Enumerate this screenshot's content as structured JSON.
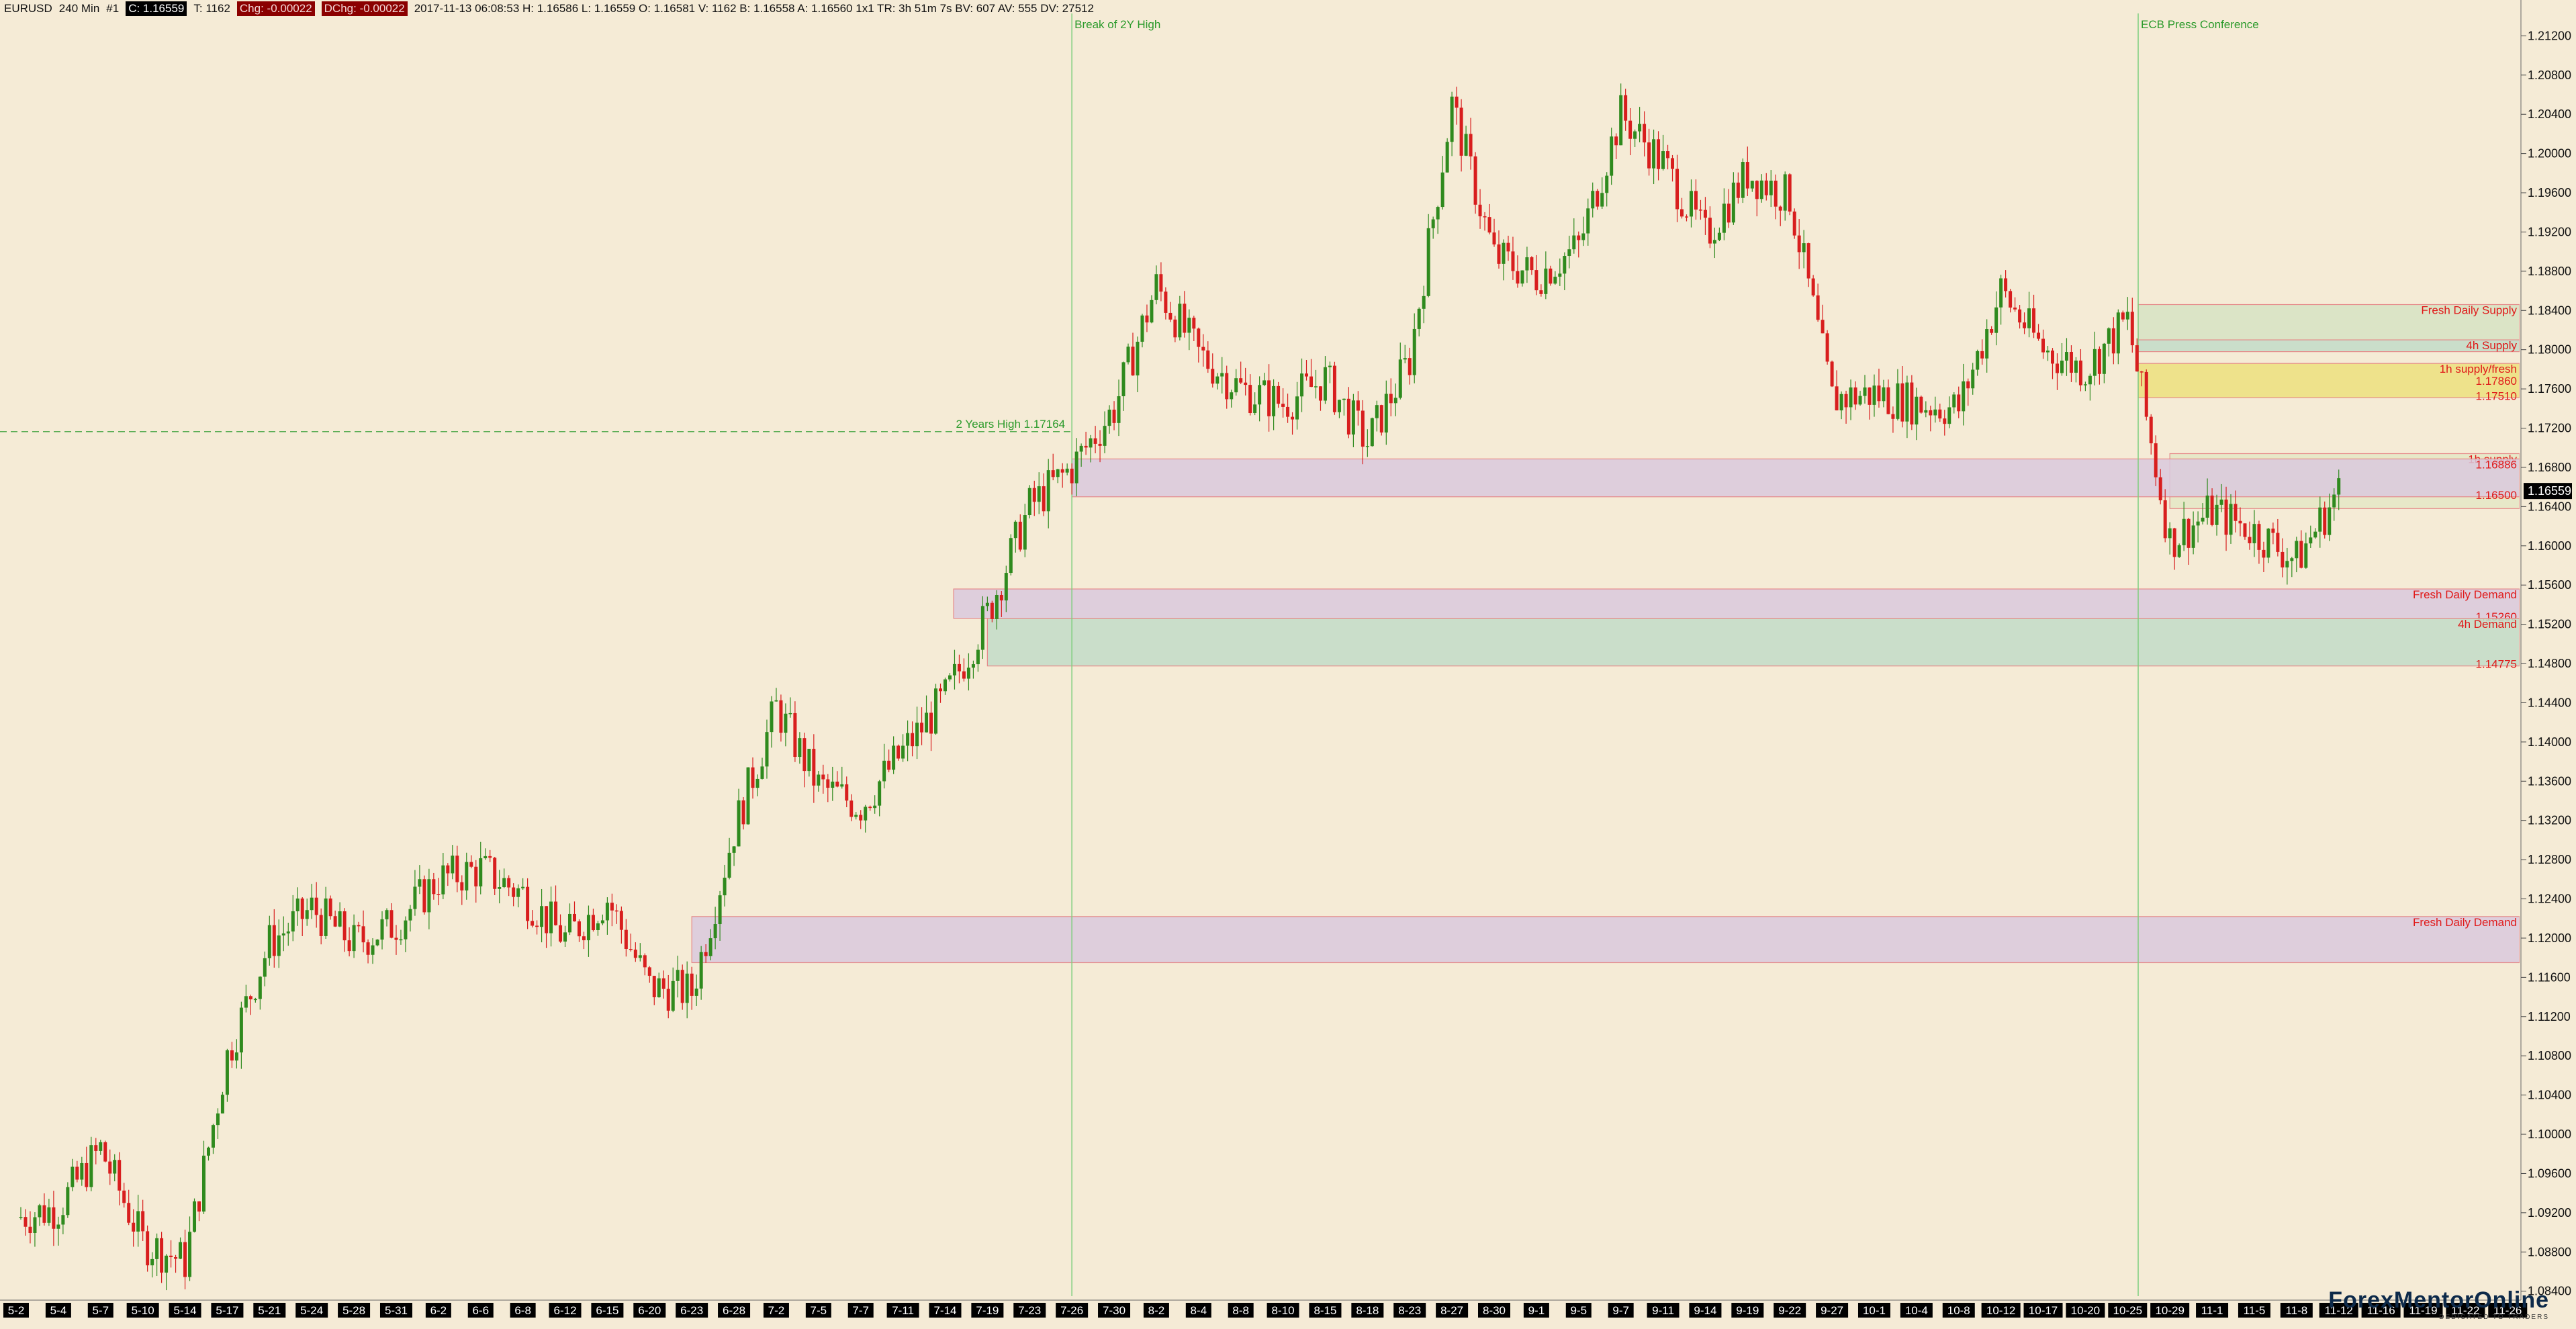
{
  "status": {
    "symbol": "EURUSD",
    "interval": "240 Min",
    "index": "#1",
    "close": "C: 1.16559",
    "ticks": "T: 1162",
    "chg": "Chg: -0.00022",
    "dchg": "DChg: -0.00022",
    "details": "2017-11-13 06:08:53 H: 1.16586 L: 1.16559 O: 1.16581 V: 1162 B: 1.16558 A: 1.16560 1x1 TR: 3h 51m 7s BV: 607 AV: 555 DV: 27512"
  },
  "watermark": {
    "brand": "ForexMentorOnline",
    "tagline": "DEDICATED TO TRADERS"
  },
  "chart_data": {
    "type": "candlestick",
    "symbol": "EURUSD",
    "timeframe": "240 Min",
    "ylim": [
      1.0835,
      1.2136
    ],
    "y_ticks": [
      "1.21200",
      "1.20800",
      "1.20400",
      "1.20000",
      "1.19600",
      "1.19200",
      "1.18800",
      "1.18400",
      "1.18000",
      "1.17600",
      "1.17200",
      "1.16800",
      "1.16400",
      "1.16000",
      "1.15600",
      "1.15200",
      "1.14800",
      "1.14400",
      "1.14000",
      "1.13600",
      "1.13200",
      "1.12800",
      "1.12400",
      "1.12000",
      "1.11600",
      "1.11200",
      "1.10800",
      "1.10400",
      "1.10000",
      "1.09600",
      "1.09200",
      "1.08800",
      "1.08400"
    ],
    "x_ticks": [
      "5-2",
      "5-4",
      "5-7",
      "5-10",
      "5-14",
      "5-17",
      "5-21",
      "5-24",
      "5-28",
      "5-31",
      "6-2",
      "6-6",
      "6-8",
      "6-12",
      "6-15",
      "6-20",
      "6-23",
      "6-28",
      "7-2",
      "7-5",
      "7-7",
      "7-11",
      "7-14",
      "7-19",
      "7-23",
      "7-26",
      "7-30",
      "8-2",
      "8-4",
      "8-8",
      "8-10",
      "8-15",
      "8-18",
      "8-23",
      "8-27",
      "8-30",
      "9-1",
      "9-5",
      "9-7",
      "9-11",
      "9-14",
      "9-19",
      "9-22",
      "9-27",
      "10-1",
      "10-4",
      "10-8",
      "10-12",
      "10-17",
      "10-20",
      "10-25",
      "10-29",
      "11-1",
      "11-5",
      "11-8",
      "11-12",
      "11-16",
      "11-19",
      "11-22",
      "11-26"
    ],
    "price_path": [
      [
        "5-2",
        1.0915
      ],
      [
        "5-4",
        1.0925
      ],
      [
        "5-7",
        1.0985
      ],
      [
        "5-10",
        1.089
      ],
      [
        "5-14",
        1.087
      ],
      [
        "5-17",
        1.108
      ],
      [
        "5-21",
        1.1195
      ],
      [
        "5-24",
        1.123
      ],
      [
        "5-28",
        1.1195
      ],
      [
        "5-31",
        1.1215
      ],
      [
        "6-2",
        1.126
      ],
      [
        "6-6",
        1.127
      ],
      [
        "6-8",
        1.1245
      ],
      [
        "6-12",
        1.12
      ],
      [
        "6-15",
        1.124
      ],
      [
        "6-20",
        1.115
      ],
      [
        "6-23",
        1.1145
      ],
      [
        "6-28",
        1.131
      ],
      [
        "7-2",
        1.1435
      ],
      [
        "7-5",
        1.1355
      ],
      [
        "7-7",
        1.1335
      ],
      [
        "7-11",
        1.139
      ],
      [
        "7-14",
        1.1445
      ],
      [
        "7-19",
        1.153
      ],
      [
        "7-23",
        1.164
      ],
      [
        "7-26",
        1.168
      ],
      [
        "7-30",
        1.174
      ],
      [
        "8-2",
        1.1865
      ],
      [
        "8-4",
        1.1795
      ],
      [
        "8-8",
        1.176
      ],
      [
        "8-10",
        1.1745
      ],
      [
        "8-15",
        1.177
      ],
      [
        "8-18",
        1.1705
      ],
      [
        "8-23",
        1.179
      ],
      [
        "8-27",
        1.205
      ],
      [
        "8-30",
        1.1895
      ],
      [
        "9-1",
        1.1875
      ],
      [
        "9-5",
        1.1905
      ],
      [
        "9-7",
        1.204
      ],
      [
        "9-11",
        1.199
      ],
      [
        "9-14",
        1.1915
      ],
      [
        "9-19",
        1.198
      ],
      [
        "9-22",
        1.1955
      ],
      [
        "9-27",
        1.175
      ],
      [
        "10-1",
        1.1755
      ],
      [
        "10-4",
        1.1745
      ],
      [
        "10-8",
        1.174
      ],
      [
        "10-12",
        1.186
      ],
      [
        "10-17",
        1.18
      ],
      [
        "10-20",
        1.178
      ],
      [
        "10-25",
        1.183
      ],
      [
        "10-29",
        1.1605
      ],
      [
        "11-1",
        1.1635
      ],
      [
        "11-5",
        1.1615
      ],
      [
        "11-8",
        1.1585
      ],
      [
        "11-12",
        1.16559
      ]
    ],
    "last_price": "1.16559",
    "horizontal_lines": [
      {
        "label": "2 Years High  1.17164",
        "price": 1.17164,
        "style": "dashed"
      }
    ],
    "vertical_lines": [
      {
        "label": "Break of 2Y High",
        "date": "7-26"
      },
      {
        "label": "ECB Press Conference",
        "date": "10-26"
      }
    ],
    "zones": [
      {
        "label": "Fresh Daily Supply",
        "from": "10-26",
        "price_top": 1.1846,
        "price_bottom": 1.181
      },
      {
        "label": "4h Supply",
        "from": "10-26",
        "price_top": 1.181,
        "price_bottom": 1.1798
      },
      {
        "label": "1h supply/fresh",
        "from": "10-26",
        "price_top": 1.1786,
        "price_bottom": 1.1751,
        "upper_label": "1.17860",
        "lower_label": "1.17510"
      },
      {
        "label": "1h supply",
        "from": "10-29",
        "price_top": 1.1694,
        "price_bottom": 1.1638
      },
      {
        "label": "",
        "from": "7-26",
        "price_top": 1.16886,
        "price_bottom": 1.165,
        "upper_label": "1.16886",
        "lower_label": "1.16500"
      },
      {
        "label": "Fresh Daily Demand",
        "from": "7-15",
        "price_top": 1.1556,
        "price_bottom": 1.1526,
        "lower_label": "1.15260"
      },
      {
        "label": "4h Demand",
        "from": "7-19",
        "price_top": 1.1526,
        "price_bottom": 1.14775,
        "lower_label": "1.14775"
      },
      {
        "label": "Fresh Daily Demand",
        "from": "6-23",
        "price_top": 1.1222,
        "price_bottom": 1.1175
      }
    ],
    "last_candle_date": "11-13",
    "colors": {
      "background": "#f5ebd6",
      "up_candle": "#2f8a1e",
      "down_candle": "#d81e1e",
      "zone_purple": "#d3c6de",
      "zone_green": "#e3e8c4",
      "zone_teal": "#bfdcc4",
      "zone_yellow": "#e9e28a",
      "vline": "#7fcf7f",
      "label_red": "#e01818",
      "label_green": "#2a9a2a"
    }
  }
}
